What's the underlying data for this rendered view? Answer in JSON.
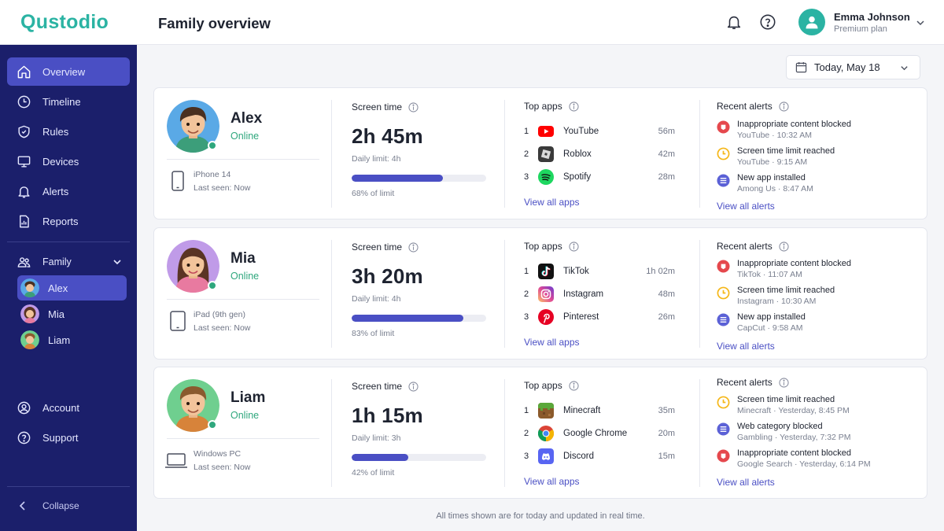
{
  "app": {
    "logo": "Qustodio"
  },
  "header": {
    "title": "Family overview",
    "user_name": "Emma Johnson",
    "user_plan": "Premium plan"
  },
  "date_picker": {
    "label": "Today, May 18"
  },
  "sidebar": {
    "nav": [
      {
        "label": "Overview",
        "icon": "home-icon",
        "active": true
      },
      {
        "label": "Timeline",
        "icon": "clock-icon"
      },
      {
        "label": "Rules",
        "icon": "shield-icon"
      },
      {
        "label": "Devices",
        "icon": "monitor-icon"
      },
      {
        "label": "Alerts",
        "icon": "bell-icon"
      },
      {
        "label": "Reports",
        "icon": "report-icon"
      }
    ],
    "family_label": "Family",
    "children": [
      {
        "name": "Alex",
        "active": true
      },
      {
        "name": "Mia"
      },
      {
        "name": "Liam"
      }
    ],
    "bottom": [
      {
        "label": "Account",
        "icon": "user-icon"
      },
      {
        "label": "Support",
        "icon": "help-icon"
      }
    ],
    "collapse_label": "Collapse"
  },
  "labels": {
    "screen_time": "Screen time",
    "top_apps": "Top apps",
    "recent_alerts": "Recent alerts",
    "view_all_apps": "View all apps",
    "view_all_alerts": "View all alerts"
  },
  "children": [
    {
      "name": "Alex",
      "status": "Online",
      "device": "iPhone 14",
      "last_seen": "Last seen: Now",
      "screen_time": "2h 45m",
      "daily_limit": "Daily limit: 4h",
      "percent_label": "68% of limit",
      "percent": 68,
      "apps": [
        {
          "rank": "1",
          "name": "YouTube",
          "time": "56m",
          "icon": "youtube-icon"
        },
        {
          "rank": "2",
          "name": "Roblox",
          "time": "42m",
          "icon": "roblox-icon"
        },
        {
          "rank": "3",
          "name": "Spotify",
          "time": "28m",
          "icon": "spotify-icon"
        }
      ],
      "alerts": [
        {
          "type": "blocked",
          "title": "Inappropriate content blocked",
          "sub": "YouTube · 10:32 AM"
        },
        {
          "type": "time",
          "title": "Screen time limit reached",
          "sub": "YouTube · 9:15 AM"
        },
        {
          "type": "app",
          "title": "New app installed",
          "sub": "Among Us · 8:47 AM"
        }
      ]
    },
    {
      "name": "Mia",
      "status": "Online",
      "device": "iPad (9th gen)",
      "last_seen": "Last seen: Now",
      "screen_time": "3h 20m",
      "daily_limit": "Daily limit: 4h",
      "percent_label": "83% of limit",
      "percent": 83,
      "apps": [
        {
          "rank": "1",
          "name": "TikTok",
          "time": "1h 02m",
          "icon": "tiktok-icon"
        },
        {
          "rank": "2",
          "name": "Instagram",
          "time": "48m",
          "icon": "instagram-icon"
        },
        {
          "rank": "3",
          "name": "Pinterest",
          "time": "26m",
          "icon": "pinterest-icon"
        }
      ],
      "alerts": [
        {
          "type": "blocked",
          "title": "Inappropriate content blocked",
          "sub": "TikTok · 11:07 AM"
        },
        {
          "type": "time",
          "title": "Screen time limit reached",
          "sub": "Instagram · 10:30 AM"
        },
        {
          "type": "app",
          "title": "New app installed",
          "sub": "CapCut · 9:58 AM"
        }
      ]
    },
    {
      "name": "Liam",
      "status": "Online",
      "device": "Windows PC",
      "last_seen": "Last seen: Now",
      "screen_time": "1h 15m",
      "daily_limit": "Daily limit: 3h",
      "percent_label": "42% of limit",
      "percent": 42,
      "apps": [
        {
          "rank": "1",
          "name": "Minecraft",
          "time": "35m",
          "icon": "minecraft-icon"
        },
        {
          "rank": "2",
          "name": "Google Chrome",
          "time": "20m",
          "icon": "chrome-icon"
        },
        {
          "rank": "3",
          "name": "Discord",
          "time": "15m",
          "icon": "discord-icon"
        }
      ],
      "alerts": [
        {
          "type": "time",
          "title": "Screen time limit reached",
          "sub": "Minecraft · Yesterday, 8:45 PM"
        },
        {
          "type": "app",
          "title": "Web category blocked",
          "sub": "Gambling · Yesterday, 7:32 PM"
        },
        {
          "type": "blocked",
          "title": "Inappropriate content blocked",
          "sub": "Google Search · Yesterday, 6:14 PM"
        }
      ]
    }
  ],
  "footer": {
    "note": "All times shown are for today and updated in real time."
  },
  "colors": {
    "accent": "#4a4fc4",
    "sidebar": "#1b1f6b",
    "brand": "#2bb3a3",
    "online": "#2fa77d"
  }
}
